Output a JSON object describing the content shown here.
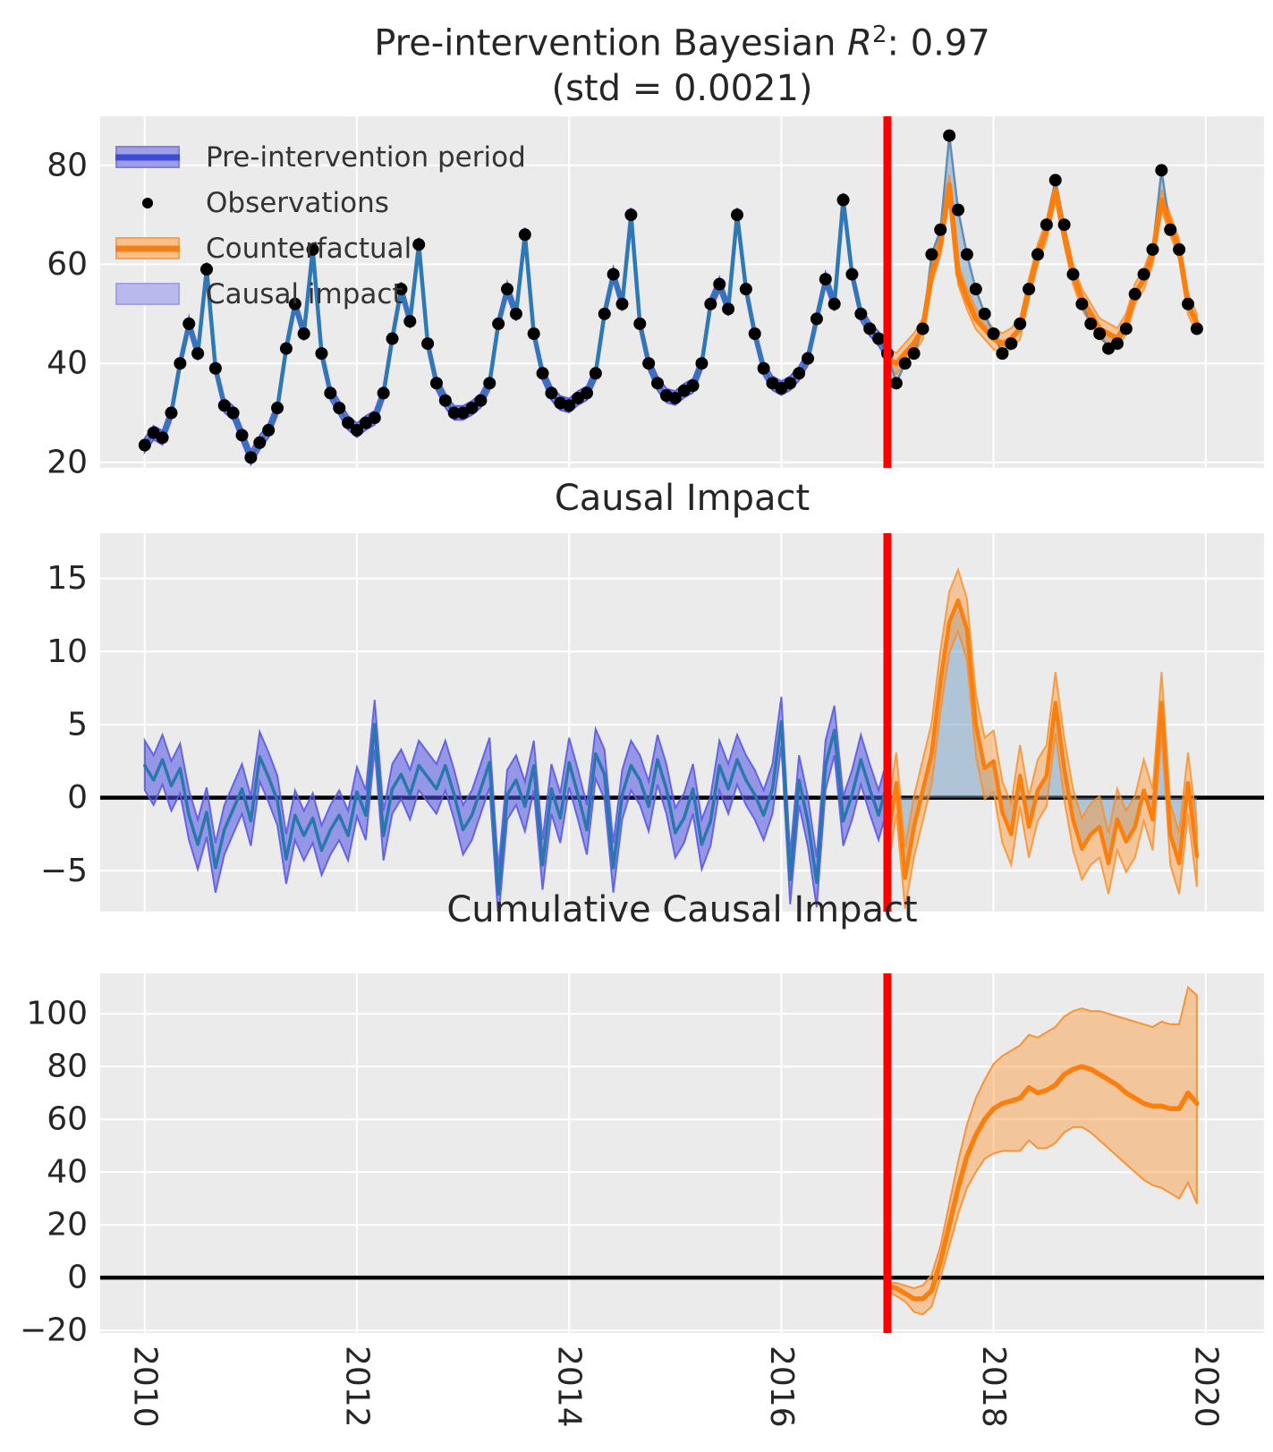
{
  "header": {
    "title_prefix": "Pre-intervention Bayesian ",
    "title_r": "R",
    "title_exp": "2",
    "title_suffix": ": 0.97",
    "subtitle": "(std = 0.0021)"
  },
  "legend": {
    "items": [
      {
        "label": "Pre-intervention period",
        "swatch": "blue-band-with-line"
      },
      {
        "label": "Observations",
        "swatch": "black-dot"
      },
      {
        "label": "Counterfactual",
        "swatch": "orange-band-with-line"
      },
      {
        "label": "Causal impact",
        "swatch": "light-blue-patch"
      }
    ]
  },
  "colors": {
    "figure_bg": "#ffffff",
    "panel_bg": "#ebebeb",
    "grid": "#ffffff",
    "tick_text": "#262626",
    "observations_dot": "#000000",
    "fit_line": "#2e78b5",
    "fit_band": "#5a5ae0",
    "counterfactual_line": "#fb7f0e",
    "counterfactual_band": "#f9a050",
    "causal_impact_fill": "#9ebfd6",
    "impact_pre_line": "#2878ad",
    "intervention_line": "#ff0000",
    "zero_line": "#000000"
  },
  "chart_data": [
    {
      "id": "observed-vs-counterfactual",
      "type": "line",
      "frequency": "monthly",
      "x_start": 2010.0,
      "xlim": [
        2009.58,
        2020.55
      ],
      "xticks": [
        2010,
        2012,
        2014,
        2016,
        2018,
        2020
      ],
      "xtick_labels": [
        "2010",
        "2012",
        "2014",
        "2016",
        "2018",
        "2020"
      ],
      "ylim": [
        18.9,
        89.9
      ],
      "yticks": [
        20,
        40,
        60,
        80
      ],
      "ytick_labels": [
        "20",
        "40",
        "60",
        "80"
      ],
      "intervention_x": 2017.0,
      "observations": [
        23.5,
        26,
        25,
        30,
        40,
        48,
        42,
        59,
        39,
        31.5,
        30,
        25.5,
        21,
        24,
        26.5,
        31,
        43,
        52,
        46,
        63,
        42,
        34,
        31,
        28,
        26.5,
        28,
        29,
        34,
        45,
        55,
        48.5,
        64,
        44,
        36,
        32.5,
        30,
        30,
        31,
        32.5,
        36,
        48,
        55,
        50,
        66,
        46,
        38,
        34,
        32,
        31.5,
        33,
        34,
        38,
        50,
        58,
        52,
        70,
        48,
        40,
        36,
        33.5,
        33,
        34.5,
        35.5,
        40,
        52,
        56,
        51,
        70,
        55,
        46,
        39,
        36,
        35,
        36,
        38,
        41,
        49,
        57,
        52,
        73,
        58,
        50,
        47,
        45,
        42,
        36,
        40,
        42,
        47,
        62,
        67,
        86,
        71,
        62,
        55,
        50,
        46,
        42,
        44,
        48,
        55,
        62,
        68,
        77,
        68,
        58,
        52,
        48,
        46,
        43,
        44,
        47,
        54,
        58,
        63,
        79,
        67,
        63,
        52,
        47
      ],
      "fit_pre_n_months": 85,
      "fit_band_halfwidth": 1.4,
      "counterfactual_x_start": 2017.0,
      "counterfactual": [
        41,
        40,
        42,
        44,
        47,
        58,
        64,
        76,
        58,
        53,
        49,
        47,
        45,
        44,
        45,
        47,
        55,
        62,
        67,
        75,
        66,
        58,
        53,
        50,
        47,
        46,
        45,
        48,
        54,
        57,
        62,
        73,
        68,
        63,
        52,
        48
      ],
      "counterfactual_band_halfwidth": 2.1
    },
    {
      "id": "pointwise-causal-impact",
      "type": "area",
      "title": "Causal Impact",
      "ylim": [
        -7.8,
        18.1
      ],
      "yticks": [
        -5,
        0,
        5,
        10,
        15
      ],
      "ytick_labels": [
        "−5",
        "0",
        "5",
        "10",
        "15"
      ],
      "zero_line": true,
      "impact_pre_x_start": 2010.0,
      "impact_pre": [
        2.2,
        1.2,
        2.6,
        0.8,
        2.0,
        -1.2,
        -3.2,
        -1.0,
        -4.8,
        -2.2,
        -0.8,
        0.6,
        -1.6,
        2.8,
        1.4,
        -0.2,
        -4.2,
        -1.2,
        -2.6,
        -1.4,
        -3.6,
        -2.2,
        -1.2,
        -2.6,
        0.4,
        -1.2,
        5.0,
        -2.6,
        0.6,
        1.6,
        0.2,
        2.2,
        1.4,
        0.6,
        2.2,
        0.2,
        -2.2,
        -1.2,
        0.6,
        2.4,
        -6.6,
        0.2,
        1.2,
        -0.6,
        2.2,
        -4.6,
        0.6,
        -1.4,
        2.4,
        0.2,
        -2.2,
        3.0,
        1.6,
        -4.8,
        0.2,
        2.2,
        1.2,
        -0.6,
        2.6,
        0.6,
        -2.4,
        -1.4,
        0.6,
        -3.2,
        -1.6,
        2.2,
        0.6,
        2.6,
        1.2,
        0.2,
        -1.2,
        0.6,
        5.2,
        -5.6,
        1.2,
        -1.6,
        -5.8,
        2.2,
        4.6,
        -1.6,
        0.2,
        2.6,
        0.6,
        -1.2,
        1.0
      ],
      "impact_pre_band_halfwidth": 1.7,
      "impact_post_x_start": 2017.0,
      "impact_post": [
        -3.0,
        1.0,
        -5.5,
        -2.0,
        0.5,
        3.0,
        8.0,
        12.0,
        13.5,
        11.5,
        5.0,
        2.0,
        2.5,
        -1.0,
        -2.5,
        1.5,
        -2.0,
        0.5,
        1.5,
        6.5,
        2.0,
        -1.5,
        -3.5,
        -2.5,
        -2.0,
        -4.5,
        -1.5,
        -3.0,
        -2.0,
        0.5,
        -1.5,
        6.5,
        -2.5,
        -4.5,
        1.0,
        -4.0
      ],
      "impact_post_band_halfwidth": 2.1
    },
    {
      "id": "cumulative-causal-impact",
      "type": "area",
      "title": "Cumulative Causal Impact",
      "ylim": [
        -21,
        115.3
      ],
      "yticks": [
        -20,
        0,
        20,
        40,
        60,
        80,
        100
      ],
      "ytick_labels": [
        "−20",
        "0",
        "20",
        "40",
        "60",
        "80",
        "100"
      ],
      "zero_line": true,
      "x_start": 2017.0,
      "mean": [
        -3,
        -4,
        -6,
        -8,
        -8,
        -5,
        6,
        20,
        34,
        46,
        54,
        60,
        64,
        66,
        67,
        68,
        72,
        70,
        71,
        73,
        77,
        79,
        80,
        79,
        77,
        75,
        73,
        70,
        68,
        66,
        65,
        65,
        64,
        64,
        70,
        66
      ],
      "upper": [
        -2,
        -2,
        -3,
        -4,
        -3,
        1,
        12,
        28,
        44,
        58,
        68,
        75,
        81,
        84,
        86,
        88,
        92,
        91,
        93,
        95,
        99,
        101,
        102,
        101,
        101,
        100,
        99,
        98,
        97,
        96,
        95,
        97,
        96,
        96,
        110,
        107
      ],
      "lower": [
        -5,
        -7,
        -9,
        -13,
        -14,
        -11,
        0,
        12,
        24,
        34,
        40,
        45,
        47,
        48,
        48,
        48,
        52,
        49,
        49,
        51,
        55,
        57,
        57,
        55,
        52,
        49,
        46,
        43,
        40,
        37,
        35,
        34,
        32,
        30,
        36,
        28
      ]
    }
  ]
}
